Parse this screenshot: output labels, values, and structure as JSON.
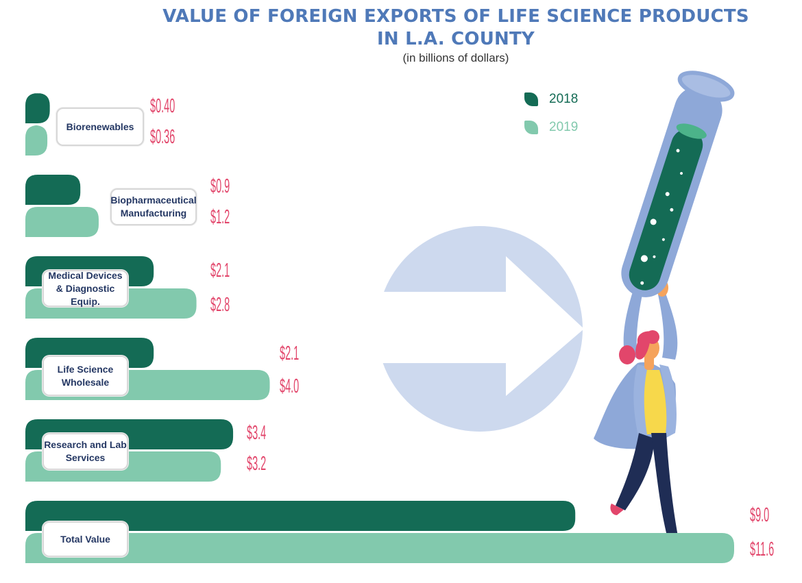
{
  "title_line1": "VALUE OF FOREIGN EXPORTS OF LIFE SCIENCE PRODUCTS",
  "title_line2": "IN L.A. COUNTY",
  "subtitle": "(in billions of dollars)",
  "colors": {
    "y2018": "#146b55",
    "y2019": "#82c9ad",
    "value_text": "#e2466b",
    "title": "#4f79b8",
    "label_text": "#243763"
  },
  "legend": [
    {
      "label": "2018",
      "color": "#146b55"
    },
    {
      "label": "2019",
      "color": "#82c9ad"
    }
  ],
  "chart_data": {
    "type": "bar",
    "orientation": "horizontal",
    "title": "VALUE OF FOREIGN EXPORTS OF LIFE SCIENCE PRODUCTS IN L.A. COUNTY",
    "subtitle": "(in billions of dollars)",
    "categories": [
      "Biorenewables",
      "Biopharmaceutical Manufacturing",
      "Medical Devices & Diagnostic Equip.",
      "Life Science Wholesale",
      "Research and Lab Services",
      "Total Value"
    ],
    "series": [
      {
        "name": "2018",
        "values": [
          0.4,
          0.9,
          2.1,
          2.1,
          3.4,
          9.0
        ],
        "labels": [
          "$0.40",
          "$0.9",
          "$2.1",
          "$2.1",
          "$3.4",
          "$9.0"
        ]
      },
      {
        "name": "2019",
        "values": [
          0.36,
          1.2,
          2.8,
          4.0,
          3.2,
          11.6
        ],
        "labels": [
          "$0.36",
          "$1.2",
          "$2.8",
          "$4.0",
          "$3.2",
          "$11.6"
        ]
      }
    ],
    "legend_position": "top-right",
    "grid": false
  }
}
